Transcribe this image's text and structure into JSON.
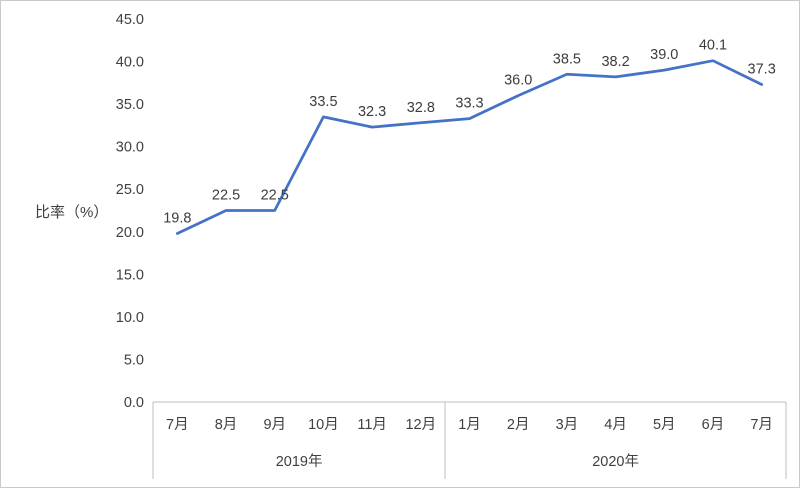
{
  "chart_data": {
    "type": "line",
    "title": "",
    "ylabel": "比率（%）",
    "xlabel": "",
    "ylim": [
      0,
      45
    ],
    "ytick_step": 5,
    "ytick_labels": [
      "45.0",
      "40.0",
      "35.0",
      "30.0",
      "25.0",
      "20.0",
      "15.0",
      "10.0",
      "5.0",
      "0.0"
    ],
    "grid": false,
    "legend": "none",
    "line_color": "#4472c4",
    "axis_color": "#bfbfbf",
    "label_color": "#404040",
    "categories": [
      "7月",
      "8月",
      "9月",
      "10月",
      "11月",
      "12月",
      "1月",
      "2月",
      "3月",
      "4月",
      "5月",
      "6月",
      "7月"
    ],
    "groups": [
      {
        "label": "2019年",
        "span": 6
      },
      {
        "label": "2020年",
        "span": 7
      }
    ],
    "values": [
      19.8,
      22.5,
      22.5,
      33.5,
      32.3,
      32.8,
      33.3,
      36.0,
      38.5,
      38.2,
      39.0,
      40.1,
      37.3
    ],
    "value_labels": [
      "19.8",
      "22.5",
      "22.5",
      "33.5",
      "32.3",
      "32.8",
      "33.3",
      "36.0",
      "38.5",
      "38.2",
      "39.0",
      "40.1",
      "37.3"
    ]
  }
}
